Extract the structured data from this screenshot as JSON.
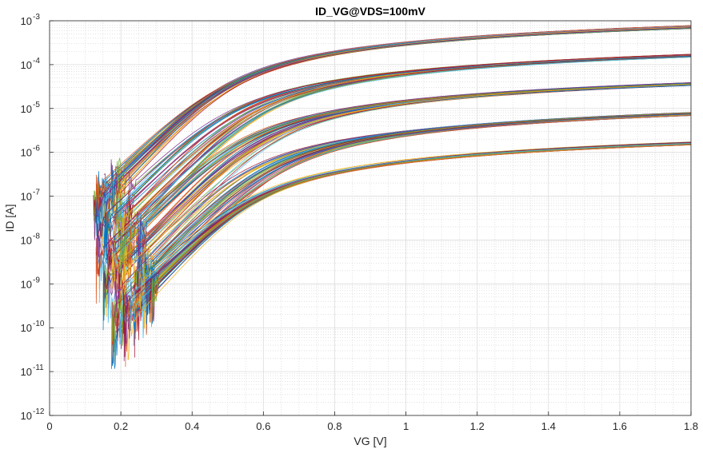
{
  "chart_data": {
    "type": "line",
    "title": "ID_VG@VDS=100mV",
    "xlabel": "VG [V]",
    "ylabel": "ID [A]",
    "xlim": [
      0,
      1.8
    ],
    "ylim": [
      1e-12,
      0.001
    ],
    "yscale": "log",
    "grid": "major and minor",
    "x_ticks": [
      0,
      0.2,
      0.4,
      0.6,
      0.8,
      1,
      1.2,
      1.4,
      1.6,
      1.8
    ],
    "x_tick_labels": [
      "0",
      "0.2",
      "0.4",
      "0.6",
      "0.8",
      "1",
      "1.2",
      "1.4",
      "1.6",
      "1.8"
    ],
    "y_ticks": [
      {
        "base": "10",
        "exp": "-12"
      },
      {
        "base": "10",
        "exp": "-11"
      },
      {
        "base": "10",
        "exp": "-10"
      },
      {
        "base": "10",
        "exp": "-9"
      },
      {
        "base": "10",
        "exp": "-8"
      },
      {
        "base": "10",
        "exp": "-7"
      },
      {
        "base": "10",
        "exp": "-6"
      },
      {
        "base": "10",
        "exp": "-5"
      },
      {
        "base": "10",
        "exp": "-4"
      },
      {
        "base": "10",
        "exp": "-3"
      }
    ],
    "curve_families": [
      {
        "id_at_1p8V": 0.00072,
        "threshold_V": [
          0.42,
          0.46
        ],
        "start_V": [
          0.12,
          0.2
        ]
      },
      {
        "id_at_1p8V": 0.00016,
        "threshold_V": [
          0.42,
          0.55
        ],
        "start_V": [
          0.13,
          0.24
        ]
      },
      {
        "id_at_1p8V": 3.6e-05,
        "threshold_V": [
          0.45,
          0.58
        ],
        "start_V": [
          0.15,
          0.27
        ]
      },
      {
        "id_at_1p8V": 7.5e-06,
        "threshold_V": [
          0.47,
          0.6
        ],
        "start_V": [
          0.17,
          0.28
        ]
      },
      {
        "id_at_1p8V": 1.6e-06,
        "threshold_V": [
          0.48,
          0.52
        ],
        "start_V": [
          0.18,
          0.3
        ]
      }
    ],
    "colors": [
      "#0072bd",
      "#d95319",
      "#edb120",
      "#7e2f8e",
      "#77ac30",
      "#4dbeee",
      "#a2142f"
    ]
  }
}
